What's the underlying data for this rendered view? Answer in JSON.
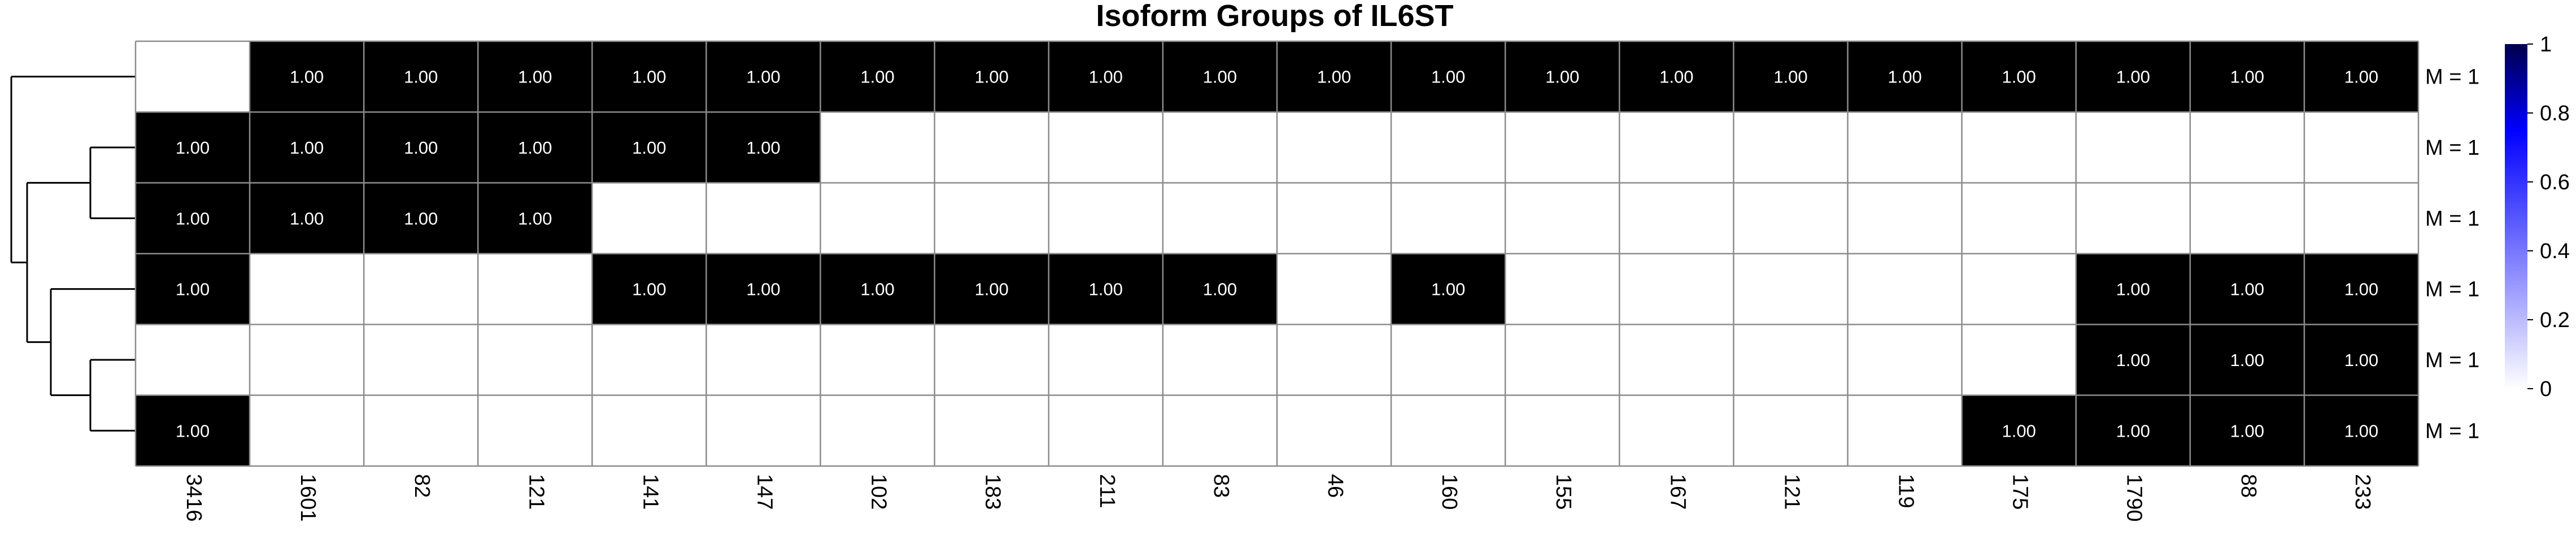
{
  "chart_data": {
    "type": "heatmap",
    "title": "Isoform Groups of IL6ST",
    "columns": [
      "3416",
      "1601",
      "82",
      "121",
      "141",
      "147",
      "102",
      "183",
      "211",
      "83",
      "46",
      "160",
      "155",
      "167",
      "121",
      "119",
      "175",
      "1790",
      "88",
      "233"
    ],
    "row_labels": [
      "M = 1",
      "M = 1",
      "M = 1",
      "M = 1",
      "M = 1",
      "M = 1"
    ],
    "values": [
      [
        null,
        1,
        1,
        1,
        1,
        1,
        1,
        1,
        1,
        1,
        1,
        1,
        1,
        1,
        1,
        1,
        1,
        1,
        1,
        1
      ],
      [
        1,
        1,
        1,
        1,
        1,
        1,
        null,
        null,
        null,
        null,
        null,
        null,
        null,
        null,
        null,
        null,
        null,
        null,
        null,
        null
      ],
      [
        1,
        1,
        1,
        1,
        null,
        null,
        null,
        null,
        null,
        null,
        null,
        null,
        null,
        null,
        null,
        null,
        null,
        null,
        null,
        null
      ],
      [
        1,
        null,
        null,
        null,
        1,
        1,
        1,
        1,
        1,
        1,
        null,
        1,
        null,
        null,
        null,
        null,
        null,
        1,
        1,
        1
      ],
      [
        null,
        null,
        null,
        null,
        null,
        null,
        null,
        null,
        null,
        null,
        null,
        null,
        null,
        null,
        null,
        null,
        null,
        1,
        1,
        1
      ],
      [
        1,
        null,
        null,
        null,
        null,
        null,
        null,
        null,
        null,
        null,
        null,
        null,
        null,
        null,
        null,
        null,
        1,
        1,
        1,
        1
      ]
    ],
    "cell_label_format": "1.00",
    "colorbar": {
      "range": [
        0,
        1
      ],
      "ticks": [
        "0",
        "0.2",
        "0.4",
        "0.6",
        "0.8",
        "1"
      ]
    },
    "colors": {
      "filled": "#000000",
      "empty": "#ffffff",
      "grid": "#8c8c8c",
      "scale_low": "#ffffff",
      "scale_high": "#0000ff",
      "scale_max": "#00004a"
    },
    "dendrogram": {
      "side": "left"
    }
  }
}
